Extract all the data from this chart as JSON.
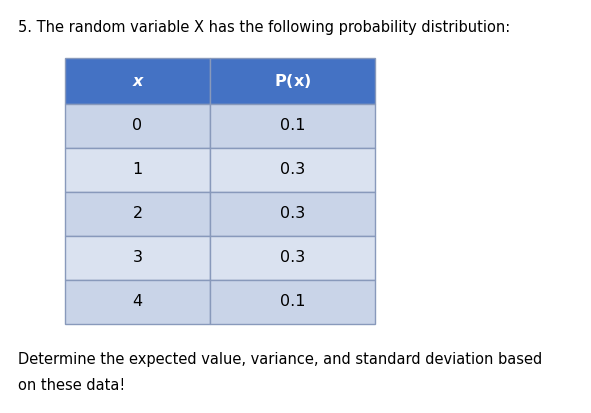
{
  "title": "5. The random variable X has the following probability distribution:",
  "footer_line1": "Determine the expected value, variance, and standard deviation based",
  "footer_line2": "on these data!",
  "col_headers": [
    "x",
    "P(x)"
  ],
  "x_values": [
    "0",
    "1",
    "2",
    "3",
    "4"
  ],
  "p_values": [
    "0.1",
    "0.3",
    "0.3",
    "0.3",
    "0.1"
  ],
  "header_bg_color": "#4472C4",
  "header_text_color": "#FFFFFF",
  "row_colors": [
    "#C9D4E8",
    "#DAE2F0",
    "#C9D4E8",
    "#DAE2F0",
    "#C9D4E8"
  ],
  "border_color": "#8899BB",
  "text_color": "#000000",
  "title_fontsize": 10.5,
  "table_fontsize": 11.5,
  "footer_fontsize": 10.5,
  "fig_width": 5.91,
  "fig_height": 4.13,
  "dpi": 100
}
